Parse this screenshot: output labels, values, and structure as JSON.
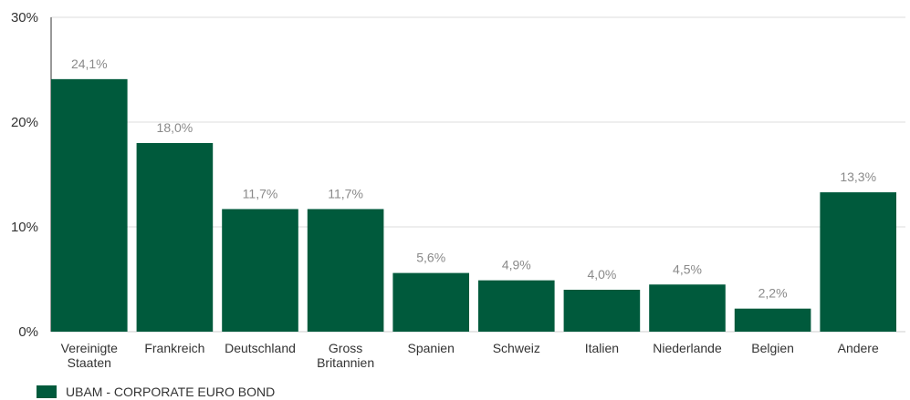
{
  "chart_data": {
    "type": "bar",
    "categories": [
      [
        "Vereinigte",
        "Staaten"
      ],
      [
        "Frankreich"
      ],
      [
        "Deutschland"
      ],
      [
        "Gross",
        "Britannien"
      ],
      [
        "Spanien"
      ],
      [
        "Schweiz"
      ],
      [
        "Italien"
      ],
      [
        "Niederlande"
      ],
      [
        "Belgien"
      ],
      [
        "Andere"
      ]
    ],
    "values": [
      24.1,
      18.0,
      11.7,
      11.7,
      5.6,
      4.9,
      4.0,
      4.5,
      2.2,
      13.3
    ],
    "data_labels": [
      "24,1%",
      "18,0%",
      "11,7%",
      "11,7%",
      "5,6%",
      "4,9%",
      "4,0%",
      "4,5%",
      "2,2%",
      "13,3%"
    ],
    "ylim": [
      0,
      30
    ],
    "yticks": [
      0,
      10,
      20,
      30
    ],
    "ytick_labels": [
      "0%",
      "10%",
      "20%",
      "30%"
    ],
    "grid": true,
    "bar_color": "#005a3c",
    "legend": {
      "position": "bottom-left",
      "entries": [
        {
          "name": "UBAM - CORPORATE EURO BOND",
          "color": "#005a3c"
        }
      ]
    }
  }
}
